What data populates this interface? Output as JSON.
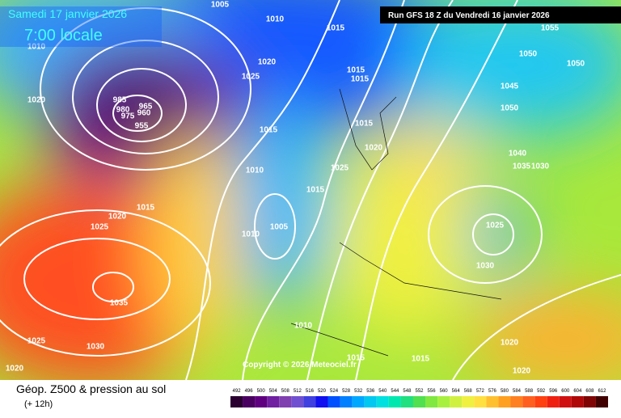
{
  "header": {
    "date": "Samedi 17 janvier 2026",
    "time": "7:00 locale",
    "run": "Run GFS 18 Z du Vendredi 16 janvier 2026"
  },
  "copyright": "Copyright © 2026 Meteociel.fr",
  "footer": {
    "title": "Géop. Z500 & pression au sol",
    "step": "(+ 12h)"
  },
  "isobar_labels": [
    "1005",
    "1010",
    "1015",
    "1010",
    "1055",
    "1050",
    "1050",
    "1020",
    "1025",
    "1015",
    "1015",
    "1020",
    "1045",
    "1050",
    "985",
    "965",
    "980",
    "960",
    "975",
    "955",
    "1015",
    "1015",
    "1020",
    "1040",
    "1035",
    "1030",
    "1010",
    "1025",
    "1015",
    "1015",
    "1020",
    "1025",
    "1005",
    "1010",
    "1025",
    "1030",
    "1035",
    "1010",
    "1025",
    "1030",
    "1015",
    "1015",
    "1020",
    "1020",
    "1020"
  ],
  "legend": {
    "ticks": [
      "492",
      "496",
      "500",
      "504",
      "508",
      "512",
      "516",
      "520",
      "524",
      "528",
      "532",
      "536",
      "540",
      "544",
      "548",
      "552",
      "556",
      "560",
      "564",
      "568",
      "572",
      "576",
      "580",
      "584",
      "588",
      "592",
      "596",
      "600",
      "604",
      "608",
      "612"
    ],
    "colors": [
      "#2a0030",
      "#4a0060",
      "#600080",
      "#7020a0",
      "#8040b0",
      "#7050d0",
      "#4040e0",
      "#1010f0",
      "#0050ff",
      "#0080ff",
      "#00a8ff",
      "#00c8f0",
      "#00e0e0",
      "#00e8b0",
      "#20e080",
      "#50e050",
      "#80e840",
      "#a8f040",
      "#d0f040",
      "#f0f040",
      "#ffe040",
      "#ffc030",
      "#ffa020",
      "#ff8020",
      "#ff6020",
      "#ff4010",
      "#f02010",
      "#d01010",
      "#b00808",
      "#800404",
      "#400000"
    ]
  }
}
